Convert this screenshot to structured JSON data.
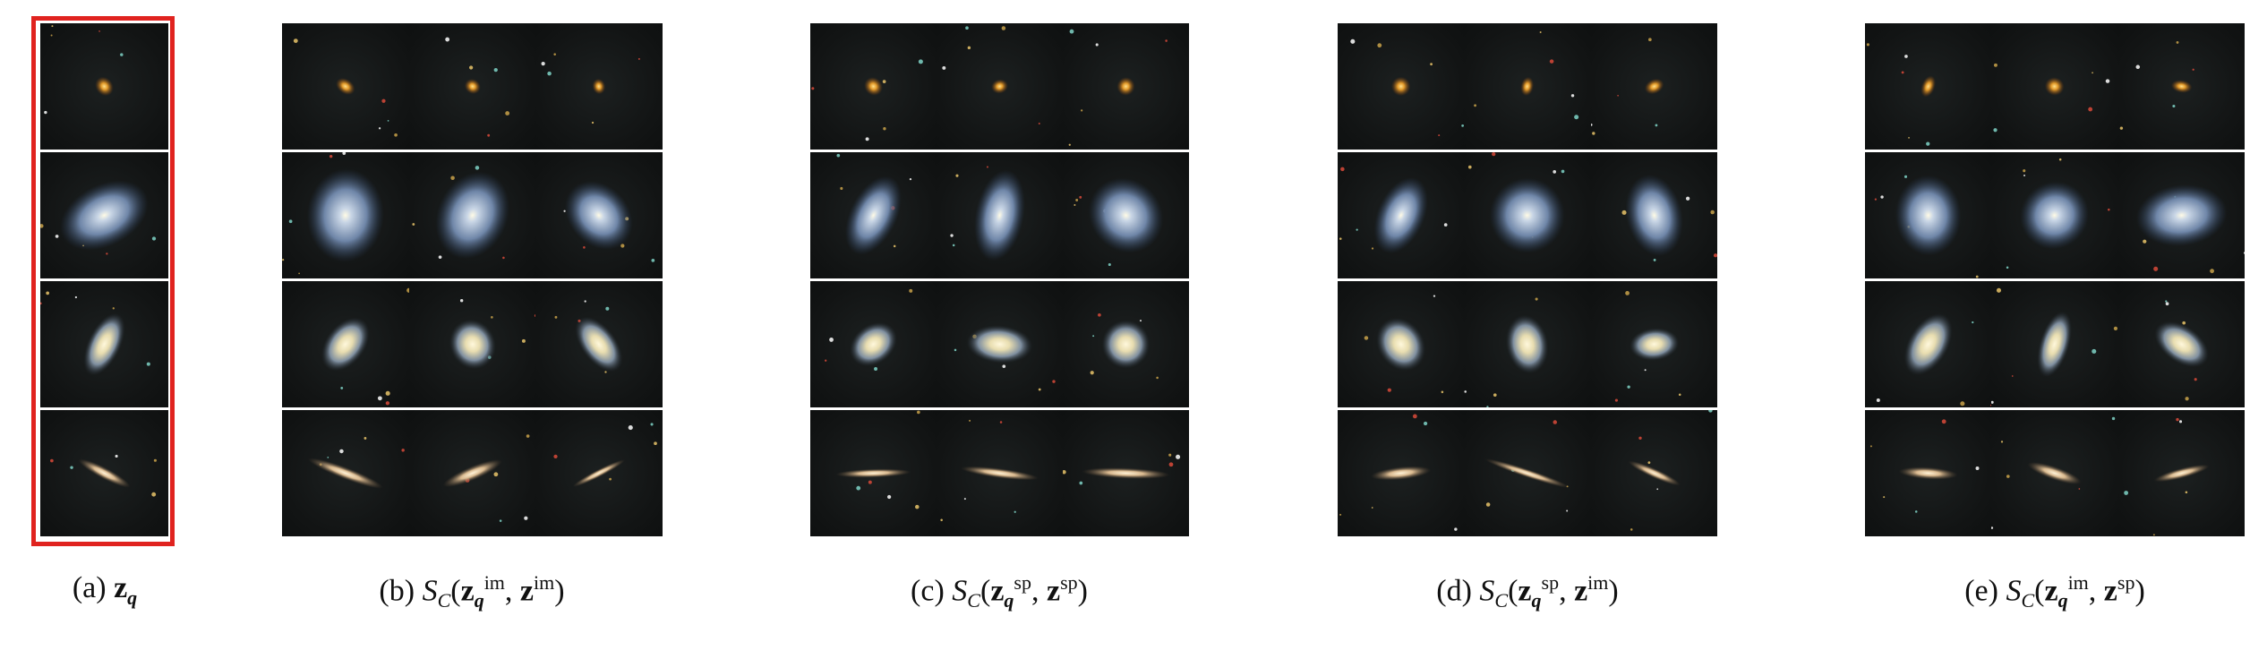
{
  "panels": [
    {
      "id": "a",
      "label": "(a)",
      "rows": 4,
      "cols": 1,
      "query": true,
      "caption": {
        "prefix": "(a) ",
        "z": "z",
        "q": "q"
      }
    },
    {
      "id": "b",
      "label": "(b)",
      "rows": 4,
      "cols": 3,
      "caption": {
        "prefix": "(b) ",
        "S": "S",
        "C": "C",
        "sup1": "im",
        "sup2": "im"
      }
    },
    {
      "id": "c",
      "label": "(c)",
      "rows": 4,
      "cols": 3,
      "caption": {
        "prefix": "(c) ",
        "S": "S",
        "C": "C",
        "sup1": "sp",
        "sup2": "sp"
      }
    },
    {
      "id": "d",
      "label": "(d)",
      "rows": 4,
      "cols": 3,
      "caption": {
        "prefix": "(d) ",
        "S": "S",
        "C": "C",
        "sup1": "sp",
        "sup2": "im"
      }
    },
    {
      "id": "e",
      "label": "(e)",
      "rows": 4,
      "cols": 3,
      "caption": {
        "prefix": "(e) ",
        "S": "S",
        "C": "C",
        "sup1": "im",
        "sup2": "sp"
      }
    }
  ],
  "colors": {
    "query_frame": "#e0231f",
    "background": "#121414",
    "row_divider": "#ffffff"
  },
  "galaxy_types": {
    "row1": "elliptical-orange",
    "row2": "spiral-blue",
    "row3": "spiral-yellow-core",
    "row4": "edge-on-disk"
  }
}
